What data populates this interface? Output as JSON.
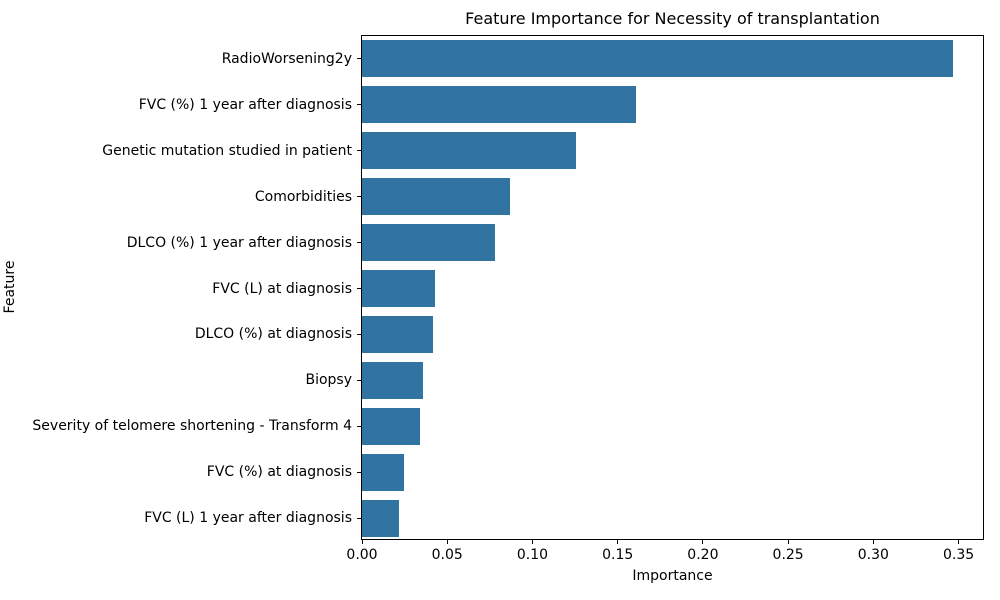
{
  "chart_data": {
    "type": "bar",
    "orientation": "horizontal",
    "title": "Feature Importance for Necessity of transplantation",
    "xlabel": "Importance",
    "ylabel": "Feature",
    "categories": [
      "RadioWorsening2y",
      "FVC (%) 1 year after diagnosis",
      "Genetic mutation studied in patient",
      "Comorbidities",
      "DLCO (%) 1 year after diagnosis",
      "FVC (L) at diagnosis",
      "DLCO (%) at diagnosis",
      "Biopsy",
      "Severity of telomere shortening - Transform 4",
      "FVC (%) at diagnosis",
      "FVC (L) 1 year after diagnosis"
    ],
    "values": [
      0.348,
      0.161,
      0.126,
      0.087,
      0.078,
      0.043,
      0.042,
      0.036,
      0.034,
      0.025,
      0.022
    ],
    "xlim": [
      0,
      0.3655
    ],
    "xticks": [
      0.0,
      0.05,
      0.1,
      0.15,
      0.2,
      0.25,
      0.3,
      0.35
    ],
    "xtick_labels": [
      "0.00",
      "0.05",
      "0.10",
      "0.15",
      "0.20",
      "0.25",
      "0.30",
      "0.35"
    ],
    "bar_color": "#3274a1",
    "grid": false,
    "legend": "none"
  }
}
